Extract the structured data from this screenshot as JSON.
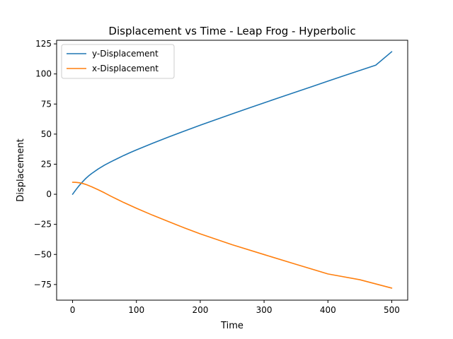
{
  "chart_data": {
    "type": "line",
    "title": "Displacement vs Time - Leap Frog - Hyperbolic",
    "xlabel": "Time",
    "ylabel": "Displacement",
    "xlim": [
      -25,
      525
    ],
    "ylim": [
      -88,
      128
    ],
    "xticks": [
      0,
      100,
      200,
      300,
      400,
      500
    ],
    "yticks": [
      -75,
      -50,
      -25,
      0,
      25,
      50,
      75,
      100,
      125
    ],
    "xtick_labels": [
      "0",
      "100",
      "200",
      "300",
      "400",
      "500"
    ],
    "ytick_labels": [
      "−75",
      "−50",
      "−25",
      "0",
      "25",
      "50",
      "75",
      "100",
      "125"
    ],
    "grid": false,
    "legend_position": "top-left",
    "series": [
      {
        "name": "y-Displacement",
        "color": "#1f77b4",
        "x": [
          0,
          5,
          10,
          15,
          20,
          25,
          30,
          40,
          50,
          60,
          70,
          80,
          90,
          100,
          125,
          150,
          175,
          200,
          225,
          250,
          275,
          300,
          325,
          350,
          375,
          400,
          425,
          450,
          475,
          500
        ],
        "y": [
          0,
          3.6,
          7.0,
          10.0,
          12.8,
          15.2,
          17.3,
          21.0,
          24.2,
          27.0,
          29.6,
          32.2,
          34.6,
          36.9,
          42.3,
          47.5,
          52.5,
          57.4,
          62.1,
          66.8,
          71.4,
          76.0,
          80.5,
          85.0,
          89.5,
          94.0,
          98.5,
          102.9,
          107.3,
          118.5
        ]
      },
      {
        "name": "x-Displacement",
        "color": "#ff7f0e",
        "x": [
          0,
          5,
          10,
          15,
          20,
          25,
          30,
          40,
          50,
          60,
          70,
          80,
          100,
          125,
          150,
          175,
          200,
          250,
          300,
          350,
          400,
          450,
          500
        ],
        "y": [
          10.0,
          9.9,
          9.6,
          9.1,
          8.3,
          7.3,
          6.2,
          3.8,
          1.2,
          -1.6,
          -4.2,
          -6.8,
          -11.6,
          -17.3,
          -22.6,
          -27.9,
          -32.9,
          -41.9,
          -50.1,
          -58.2,
          -66.2,
          -71.0,
          -78.0
        ]
      }
    ]
  }
}
